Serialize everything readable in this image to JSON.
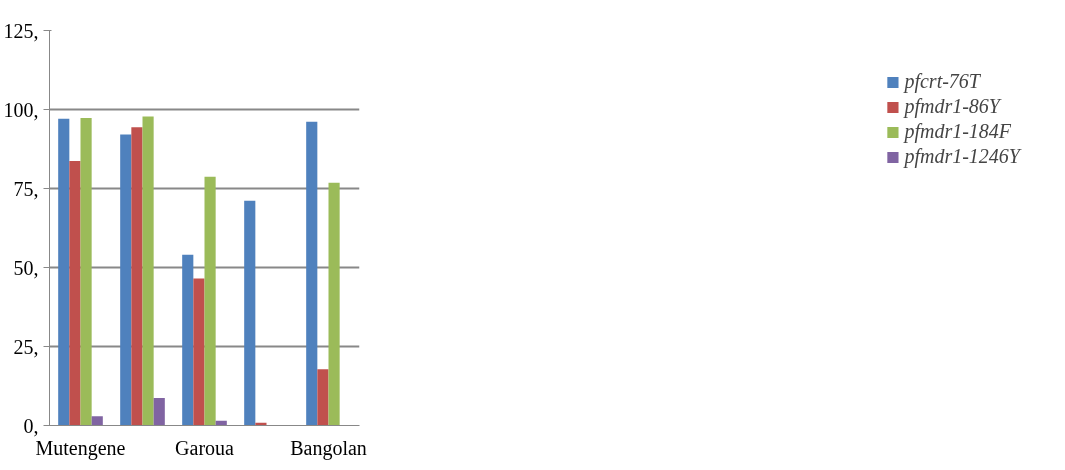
{
  "chart_data": {
    "type": "bar",
    "categories": [
      "Mutengene",
      null,
      "Garoua",
      null,
      "Bangolan"
    ],
    "series": [
      {
        "name": "pfcrt-76T",
        "color": "#4f81bd",
        "values": [
          97.1,
          92.1,
          54.0,
          71.1,
          96.1
        ]
      },
      {
        "name": "pfmdr1-86Y",
        "color": "#c0504d",
        "values": [
          83.7,
          94.4,
          46.5,
          0.9,
          17.8
        ]
      },
      {
        "name": "pfmdr1-184F",
        "color": "#9bbb59",
        "values": [
          97.3,
          97.8,
          78.7,
          0,
          76.8
        ]
      },
      {
        "name": "pfmdr1-1246Y",
        "color": "#8064a2",
        "values": [
          2.9,
          8.7,
          1.5,
          0,
          0
        ]
      }
    ],
    "ylim": [
      0,
      125
    ],
    "yticks": [
      {
        "value": 0,
        "label": "0,"
      },
      {
        "value": 25,
        "label": "25,"
      },
      {
        "value": 50,
        "label": "50,"
      },
      {
        "value": 75,
        "label": "75,"
      },
      {
        "value": 100,
        "label": "100,"
      },
      {
        "value": 125,
        "label": "125,"
      }
    ],
    "grid": "y",
    "legend": "right"
  }
}
